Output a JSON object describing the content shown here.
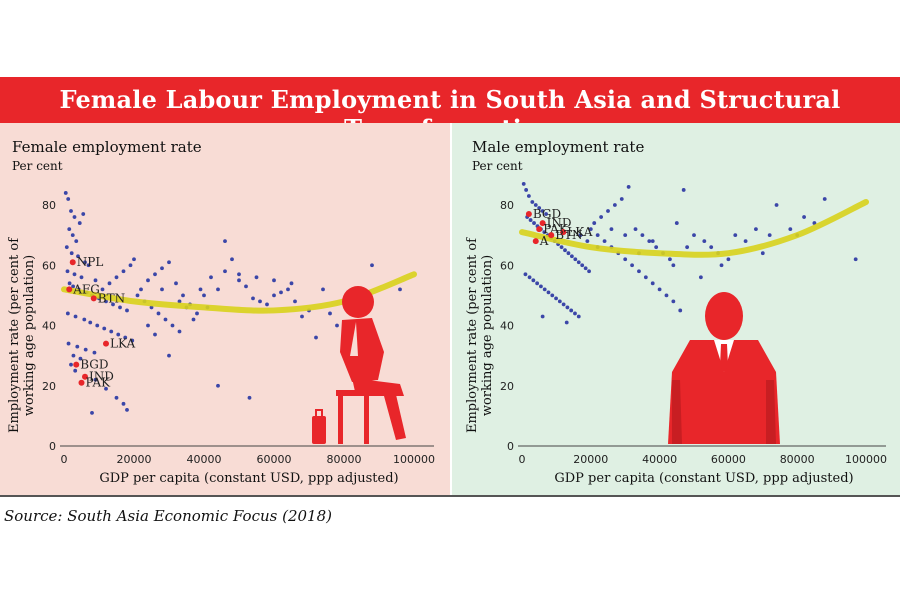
{
  "banner": {
    "title": "Female Labour Employment in South Asia and Structural Transformation"
  },
  "source": "Source: South Asia Economic Focus (2018)",
  "colors": {
    "banner": "#e8262a",
    "left_bg": "#f8dcd5",
    "right_bg": "#dff0e3",
    "dots": "#3b46a8",
    "trend": "#d8d21c",
    "highlight": "#e8262a"
  },
  "icons": {
    "left": "seated-woman-icon",
    "right": "standing-man-icon"
  },
  "chart_data": [
    {
      "type": "scatter",
      "panel_title": "Female employment rate",
      "unit": "Per cent",
      "xlabel": "GDP per capita (constant USD, ppp adjusted)",
      "ylabel": [
        "Employment rate (per cent of",
        "working age population)"
      ],
      "xlim": [
        0,
        105000
      ],
      "ylim": [
        0,
        87
      ],
      "x_ticks": [
        0,
        20000,
        40000,
        60000,
        80000,
        100000
      ],
      "x_tick_labels": [
        "0",
        "20000",
        "40000",
        "60000",
        "80000",
        "100000"
      ],
      "y_ticks": [
        0,
        20,
        40,
        60,
        80
      ],
      "y_tick_labels": [
        "0",
        "20",
        "40",
        "60",
        "80"
      ],
      "points": [
        [
          500,
          84
        ],
        [
          1200,
          82
        ],
        [
          2000,
          78
        ],
        [
          3000,
          76
        ],
        [
          4500,
          74
        ],
        [
          5500,
          77
        ],
        [
          1500,
          72
        ],
        [
          2500,
          70
        ],
        [
          3500,
          68
        ],
        [
          800,
          66
        ],
        [
          2200,
          64
        ],
        [
          4000,
          63
        ],
        [
          6000,
          61
        ],
        [
          7000,
          60
        ],
        [
          1000,
          58
        ],
        [
          3000,
          57
        ],
        [
          5000,
          56
        ],
        [
          9000,
          55
        ],
        [
          1600,
          54
        ],
        [
          2600,
          53
        ],
        [
          4200,
          52
        ],
        [
          6500,
          51
        ],
        [
          8000,
          50
        ],
        [
          10000,
          49
        ],
        [
          12000,
          48
        ],
        [
          14000,
          47
        ],
        [
          16000,
          46
        ],
        [
          18000,
          45
        ],
        [
          1100,
          44
        ],
        [
          3300,
          43
        ],
        [
          5800,
          42
        ],
        [
          7500,
          41
        ],
        [
          9500,
          40
        ],
        [
          11500,
          39
        ],
        [
          13500,
          38
        ],
        [
          15500,
          37
        ],
        [
          17500,
          36
        ],
        [
          19500,
          35
        ],
        [
          1300,
          34
        ],
        [
          3800,
          33
        ],
        [
          6200,
          32
        ],
        [
          8700,
          31
        ],
        [
          2700,
          30
        ],
        [
          4700,
          29
        ],
        [
          2000,
          27
        ],
        [
          3200,
          25
        ],
        [
          9000,
          22
        ],
        [
          12000,
          19
        ],
        [
          15000,
          16
        ],
        [
          17000,
          14
        ],
        [
          18000,
          12
        ],
        [
          8000,
          11
        ],
        [
          21000,
          50
        ],
        [
          23000,
          48
        ],
        [
          25000,
          46
        ],
        [
          27000,
          44
        ],
        [
          29000,
          42
        ],
        [
          31000,
          40
        ],
        [
          33000,
          38
        ],
        [
          22000,
          52
        ],
        [
          24000,
          55
        ],
        [
          26000,
          57
        ],
        [
          28000,
          59
        ],
        [
          30000,
          61
        ],
        [
          32000,
          54
        ],
        [
          34000,
          50
        ],
        [
          36000,
          47
        ],
        [
          38000,
          44
        ],
        [
          40000,
          50
        ],
        [
          42000,
          56
        ],
        [
          44000,
          52
        ],
        [
          46000,
          68
        ],
        [
          48000,
          62
        ],
        [
          50000,
          55
        ],
        [
          52000,
          53
        ],
        [
          54000,
          49
        ],
        [
          56000,
          48
        ],
        [
          58000,
          47
        ],
        [
          60000,
          50
        ],
        [
          62000,
          51
        ],
        [
          64000,
          52
        ],
        [
          66000,
          48
        ],
        [
          68000,
          43
        ],
        [
          70000,
          45
        ],
        [
          72000,
          36
        ],
        [
          74000,
          52
        ],
        [
          76000,
          44
        ],
        [
          78000,
          40
        ],
        [
          80000,
          38
        ],
        [
          82000,
          46
        ],
        [
          85000,
          44
        ],
        [
          88000,
          60
        ],
        [
          96000,
          52
        ],
        [
          44000,
          20
        ],
        [
          53000,
          16
        ],
        [
          30000,
          30
        ],
        [
          26000,
          37
        ],
        [
          37000,
          42
        ],
        [
          41000,
          46
        ],
        [
          19000,
          60
        ],
        [
          17000,
          58
        ],
        [
          15000,
          56
        ],
        [
          13000,
          54
        ],
        [
          11000,
          52
        ],
        [
          20000,
          62
        ],
        [
          24000,
          40
        ],
        [
          33000,
          48
        ],
        [
          35000,
          46
        ],
        [
          28000,
          52
        ],
        [
          39000,
          52
        ],
        [
          46000,
          58
        ],
        [
          50000,
          57
        ],
        [
          55000,
          56
        ],
        [
          60000,
          55
        ],
        [
          65000,
          54
        ]
      ],
      "highlighted": [
        {
          "label": "NPL",
          "x": 2500,
          "y": 61
        },
        {
          "label": "AFG",
          "x": 1500,
          "y": 52
        },
        {
          "label": "BTN",
          "x": 8500,
          "y": 49
        },
        {
          "label": "LKA",
          "x": 12000,
          "y": 34
        },
        {
          "label": "BGD",
          "x": 3500,
          "y": 27
        },
        {
          "label": "IND",
          "x": 6000,
          "y": 23
        },
        {
          "label": "PAK",
          "x": 5000,
          "y": 21
        }
      ],
      "trend": {
        "x": [
          0,
          20000,
          40000,
          60000,
          80000,
          100000
        ],
        "y": [
          52,
          48,
          46,
          45,
          48,
          57
        ]
      }
    },
    {
      "type": "scatter",
      "panel_title": "Male employment rate",
      "unit": "Per cent",
      "xlabel": "GDP per capita (constant USD, ppp adjusted)",
      "ylabel": [
        "Employment rate (per cent of",
        "working age population)"
      ],
      "xlim": [
        0,
        105000
      ],
      "ylim": [
        0,
        87
      ],
      "x_ticks": [
        0,
        20000,
        40000,
        60000,
        80000,
        100000
      ],
      "x_tick_labels": [
        "0",
        "20000",
        "40000",
        "60000",
        "80000",
        "100000"
      ],
      "y_ticks": [
        0,
        20,
        40,
        60,
        80
      ],
      "y_tick_labels": [
        "0",
        "20",
        "40",
        "60",
        "80"
      ],
      "points": [
        [
          500,
          87
        ],
        [
          1200,
          85
        ],
        [
          2000,
          83
        ],
        [
          3000,
          81
        ],
        [
          4000,
          80
        ],
        [
          5000,
          79
        ],
        [
          6000,
          78
        ],
        [
          7000,
          77
        ],
        [
          1500,
          76
        ],
        [
          2500,
          75
        ],
        [
          3500,
          74
        ],
        [
          4500,
          73
        ],
        [
          5500,
          72
        ],
        [
          6500,
          71
        ],
        [
          7500,
          70
        ],
        [
          8500,
          69
        ],
        [
          9500,
          68
        ],
        [
          10500,
          67
        ],
        [
          11500,
          66
        ],
        [
          12500,
          65
        ],
        [
          13500,
          64
        ],
        [
          14500,
          63
        ],
        [
          15500,
          62
        ],
        [
          16500,
          61
        ],
        [
          17500,
          60
        ],
        [
          18500,
          59
        ],
        [
          19500,
          58
        ],
        [
          1000,
          57
        ],
        [
          2200,
          56
        ],
        [
          3300,
          55
        ],
        [
          4400,
          54
        ],
        [
          5500,
          53
        ],
        [
          6600,
          52
        ],
        [
          7700,
          51
        ],
        [
          8800,
          50
        ],
        [
          9900,
          49
        ],
        [
          11000,
          48
        ],
        [
          12100,
          47
        ],
        [
          13200,
          46
        ],
        [
          14300,
          45
        ],
        [
          15400,
          44
        ],
        [
          16500,
          43
        ],
        [
          6000,
          43
        ],
        [
          13000,
          41
        ],
        [
          20000,
          72
        ],
        [
          22000,
          70
        ],
        [
          24000,
          68
        ],
        [
          26000,
          66
        ],
        [
          28000,
          64
        ],
        [
          30000,
          62
        ],
        [
          32000,
          60
        ],
        [
          34000,
          58
        ],
        [
          36000,
          56
        ],
        [
          38000,
          54
        ],
        [
          40000,
          52
        ],
        [
          42000,
          50
        ],
        [
          44000,
          48
        ],
        [
          46000,
          45
        ],
        [
          21000,
          74
        ],
        [
          23000,
          76
        ],
        [
          25000,
          78
        ],
        [
          27000,
          80
        ],
        [
          29000,
          82
        ],
        [
          31000,
          86
        ],
        [
          33000,
          72
        ],
        [
          35000,
          70
        ],
        [
          37000,
          68
        ],
        [
          39000,
          66
        ],
        [
          41000,
          64
        ],
        [
          43000,
          62
        ],
        [
          45000,
          74
        ],
        [
          47000,
          85
        ],
        [
          50000,
          70
        ],
        [
          53000,
          68
        ],
        [
          55000,
          66
        ],
        [
          57000,
          64
        ],
        [
          60000,
          62
        ],
        [
          62000,
          70
        ],
        [
          65000,
          68
        ],
        [
          68000,
          72
        ],
        [
          70000,
          64
        ],
        [
          72000,
          70
        ],
        [
          74000,
          80
        ],
        [
          78000,
          72
        ],
        [
          80000,
          70
        ],
        [
          82000,
          76
        ],
        [
          85000,
          74
        ],
        [
          88000,
          82
        ],
        [
          97000,
          62
        ],
        [
          52000,
          56
        ],
        [
          58000,
          60
        ],
        [
          48000,
          66
        ],
        [
          44000,
          60
        ],
        [
          38000,
          68
        ],
        [
          34000,
          64
        ],
        [
          30000,
          70
        ],
        [
          26000,
          72
        ],
        [
          22000,
          66
        ],
        [
          19000,
          68
        ],
        [
          17000,
          70
        ]
      ],
      "highlighted": [
        {
          "label": "BGD",
          "x": 2000,
          "y": 77
        },
        {
          "label": "IND",
          "x": 6000,
          "y": 74
        },
        {
          "label": "PAK",
          "x": 5000,
          "y": 72
        },
        {
          "label": "LKA",
          "x": 12000,
          "y": 71
        },
        {
          "label": "BTN",
          "x": 8500,
          "y": 70
        },
        {
          "label": "A",
          "x": 4000,
          "y": 68
        }
      ],
      "trend": {
        "x": [
          0,
          20000,
          40000,
          60000,
          80000,
          100000
        ],
        "y": [
          71,
          66,
          64,
          64,
          70,
          81
        ]
      }
    }
  ]
}
